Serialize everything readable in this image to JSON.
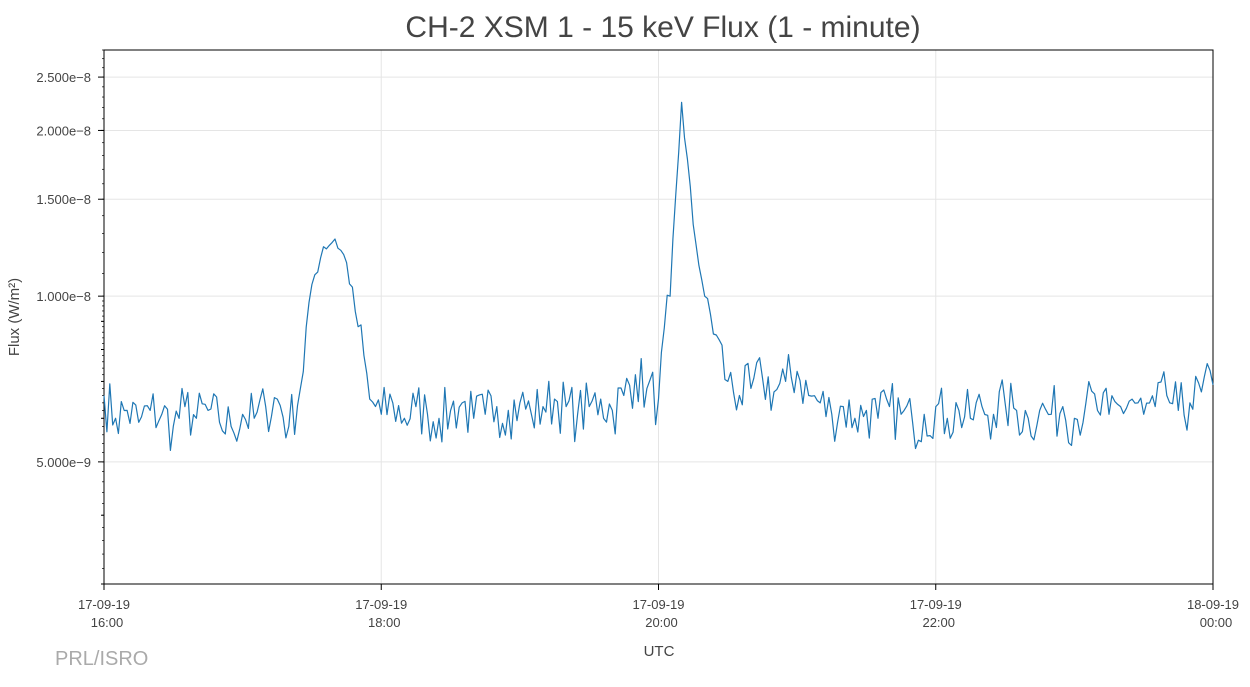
{
  "credit": "PRL/ISRO",
  "chart_data": {
    "type": "line",
    "title": "CH-2 XSM 1 - 15 keV Flux (1 - minute)",
    "xlabel": "UTC",
    "ylabel": "Flux (W/m²)",
    "yscale": "log",
    "xlim": [
      "2019-09-17T16:00",
      "2019-09-18T00:00"
    ],
    "ylim": [
      3e-09,
      2.8e-08
    ],
    "grid": true,
    "line_color": "#1f77b4",
    "x_ticks": [
      {
        "date": "17-09-19",
        "time": "16:00"
      },
      {
        "date": "17-09-19",
        "time": "18:00"
      },
      {
        "date": "17-09-19",
        "time": "20:00"
      },
      {
        "date": "17-09-19",
        "time": "22:00"
      },
      {
        "date": "18-09-19",
        "time": "00:00"
      }
    ],
    "y_ticks": [
      {
        "value": 5e-09,
        "label": "5.000e−9"
      },
      {
        "value": 1e-08,
        "label": "1.000e−8"
      },
      {
        "value": 1.5e-08,
        "label": "1.500e−8"
      },
      {
        "value": 2e-08,
        "label": "2.000e−8"
      },
      {
        "value": 2.5e-08,
        "label": "2.500e−8"
      }
    ],
    "series": [
      {
        "points": [
          [
            "2019-09-17T16:00",
            6.6e-09
          ],
          [
            "2019-09-17T16:05",
            6e-09
          ],
          [
            "2019-09-17T16:10",
            6.2e-09
          ],
          [
            "2019-09-17T16:15",
            5.9e-09
          ],
          [
            "2019-09-17T16:20",
            6.2e-09
          ],
          [
            "2019-09-17T16:25",
            6.1e-09
          ],
          [
            "2019-09-17T16:30",
            5.8e-09
          ],
          [
            "2019-09-17T16:35",
            6.3e-09
          ],
          [
            "2019-09-17T16:40",
            6e-09
          ],
          [
            "2019-09-17T16:45",
            6.2e-09
          ],
          [
            "2019-09-17T16:50",
            5.9e-09
          ],
          [
            "2019-09-17T16:55",
            5.8e-09
          ],
          [
            "2019-09-17T17:00",
            6.1e-09
          ],
          [
            "2019-09-17T17:05",
            6e-09
          ],
          [
            "2019-09-17T17:10",
            6.3e-09
          ],
          [
            "2019-09-17T17:15",
            6.5e-09
          ],
          [
            "2019-09-17T17:20",
            5.8e-09
          ],
          [
            "2019-09-17T17:25",
            6.8e-09
          ],
          [
            "2019-09-17T17:30",
            1.05e-08
          ],
          [
            "2019-09-17T17:35",
            1.23e-08
          ],
          [
            "2019-09-17T17:40",
            1.27e-08
          ],
          [
            "2019-09-17T17:45",
            1.15e-08
          ],
          [
            "2019-09-17T17:50",
            8.8e-09
          ],
          [
            "2019-09-17T17:55",
            6.5e-09
          ],
          [
            "2019-09-17T18:00",
            6.1e-09
          ],
          [
            "2019-09-17T18:05",
            6.4e-09
          ],
          [
            "2019-09-17T18:10",
            6e-09
          ],
          [
            "2019-09-17T18:15",
            6.3e-09
          ],
          [
            "2019-09-17T18:20",
            6.1e-09
          ],
          [
            "2019-09-17T18:25",
            6e-09
          ],
          [
            "2019-09-17T18:30",
            6.2e-09
          ],
          [
            "2019-09-17T18:35",
            6.4e-09
          ],
          [
            "2019-09-17T18:40",
            6e-09
          ],
          [
            "2019-09-17T18:45",
            6.1e-09
          ],
          [
            "2019-09-17T18:50",
            6.3e-09
          ],
          [
            "2019-09-17T18:55",
            6.2e-09
          ],
          [
            "2019-09-17T19:00",
            6.4e-09
          ],
          [
            "2019-09-17T19:05",
            6.1e-09
          ],
          [
            "2019-09-17T19:10",
            6.3e-09
          ],
          [
            "2019-09-17T19:15",
            6.5e-09
          ],
          [
            "2019-09-17T19:20",
            6.3e-09
          ],
          [
            "2019-09-17T19:25",
            6.1e-09
          ],
          [
            "2019-09-17T19:30",
            6.3e-09
          ],
          [
            "2019-09-17T19:35",
            6.5e-09
          ],
          [
            "2019-09-17T19:40",
            6.2e-09
          ],
          [
            "2019-09-17T19:45",
            6.6e-09
          ],
          [
            "2019-09-17T19:50",
            7.2e-09
          ],
          [
            "2019-09-17T19:55",
            6.8e-09
          ],
          [
            "2019-09-17T20:00",
            6.5e-09
          ],
          [
            "2019-09-17T20:05",
            1e-08
          ],
          [
            "2019-09-17T20:10",
            2.25e-08
          ],
          [
            "2019-09-17T20:15",
            1.35e-08
          ],
          [
            "2019-09-17T20:20",
            1e-08
          ],
          [
            "2019-09-17T20:25",
            8.5e-09
          ],
          [
            "2019-09-17T20:30",
            7e-09
          ],
          [
            "2019-09-17T20:35",
            6.6e-09
          ],
          [
            "2019-09-17T20:40",
            6.8e-09
          ],
          [
            "2019-09-17T20:45",
            7.1e-09
          ],
          [
            "2019-09-17T20:50",
            6.7e-09
          ],
          [
            "2019-09-17T20:55",
            7e-09
          ],
          [
            "2019-09-17T21:00",
            7.3e-09
          ],
          [
            "2019-09-17T21:05",
            6.6e-09
          ],
          [
            "2019-09-17T21:10",
            6.4e-09
          ],
          [
            "2019-09-17T21:15",
            6.1e-09
          ],
          [
            "2019-09-17T21:20",
            6.3e-09
          ],
          [
            "2019-09-17T21:25",
            6e-09
          ],
          [
            "2019-09-17T21:30",
            6.2e-09
          ],
          [
            "2019-09-17T21:35",
            6e-09
          ],
          [
            "2019-09-17T21:40",
            6.3e-09
          ],
          [
            "2019-09-17T21:45",
            6.1e-09
          ],
          [
            "2019-09-17T21:50",
            5.9e-09
          ],
          [
            "2019-09-17T21:55",
            6.1e-09
          ],
          [
            "2019-09-17T22:00",
            6.3e-09
          ],
          [
            "2019-09-17T22:05",
            6e-09
          ],
          [
            "2019-09-17T22:10",
            6.2e-09
          ],
          [
            "2019-09-17T22:15",
            6e-09
          ],
          [
            "2019-09-17T22:20",
            6.3e-09
          ],
          [
            "2019-09-17T22:25",
            6.1e-09
          ],
          [
            "2019-09-17T22:30",
            6.4e-09
          ],
          [
            "2019-09-17T22:35",
            6.2e-09
          ],
          [
            "2019-09-17T22:40",
            6e-09
          ],
          [
            "2019-09-17T22:45",
            6.2e-09
          ],
          [
            "2019-09-17T22:50",
            6.1e-09
          ],
          [
            "2019-09-17T22:55",
            6.3e-09
          ],
          [
            "2019-09-17T23:00",
            6e-09
          ],
          [
            "2019-09-17T23:05",
            6.4e-09
          ],
          [
            "2019-09-17T23:10",
            6.2e-09
          ],
          [
            "2019-09-17T23:15",
            6.1e-09
          ],
          [
            "2019-09-17T23:20",
            6.3e-09
          ],
          [
            "2019-09-17T23:25",
            6.5e-09
          ],
          [
            "2019-09-17T23:30",
            6.1e-09
          ],
          [
            "2019-09-17T23:35",
            6.3e-09
          ],
          [
            "2019-09-17T23:40",
            6.6e-09
          ],
          [
            "2019-09-17T23:45",
            6.2e-09
          ],
          [
            "2019-09-17T23:50",
            6.4e-09
          ],
          [
            "2019-09-17T23:55",
            6.7e-09
          ],
          [
            "2019-09-18T00:00",
            6.9e-09
          ]
        ]
      }
    ]
  }
}
